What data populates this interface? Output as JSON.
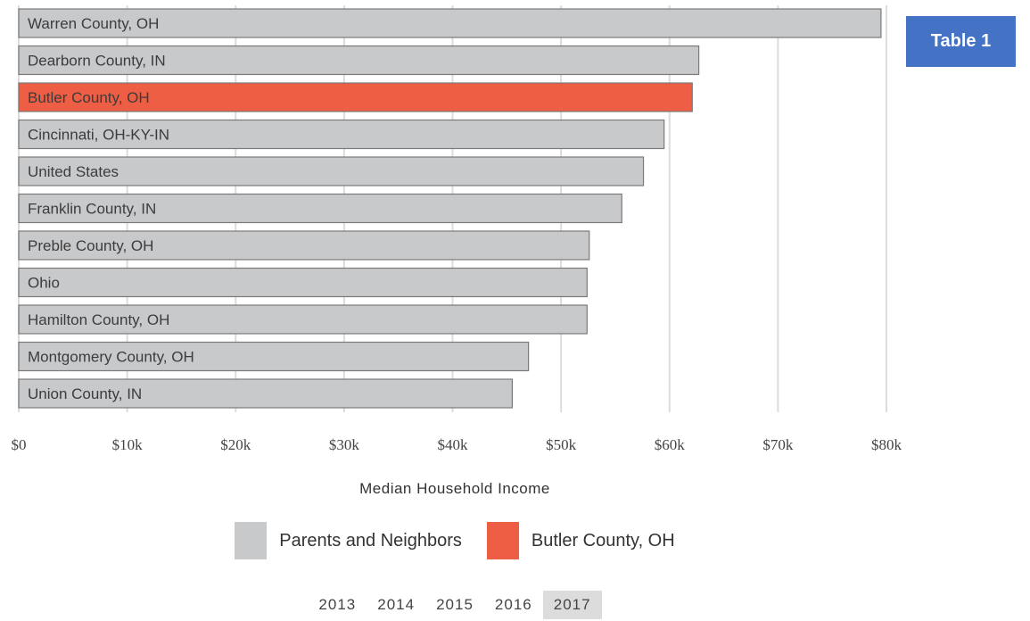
{
  "badge": {
    "label": "Table 1",
    "color": "#4472c4"
  },
  "chart_data": {
    "type": "bar",
    "orientation": "horizontal",
    "categories": [
      "Warren County, OH",
      "Dearborn County, IN",
      "Butler County, OH",
      "Cincinnati, OH-KY-IN",
      "United States",
      "Franklin County, IN",
      "Preble County, OH",
      "Ohio",
      "Hamilton County, OH",
      "Montgomery County, OH",
      "Union County, IN"
    ],
    "values": [
      79500,
      62700,
      62100,
      59500,
      57600,
      55600,
      52600,
      52400,
      52400,
      47000,
      45500
    ],
    "highlight": [
      "no",
      "no",
      "yes",
      "no",
      "no",
      "no",
      "no",
      "no",
      "no",
      "no",
      "no"
    ],
    "xlabel": "Median Household Income",
    "xlim": [
      0,
      80000
    ],
    "ticks": [
      0,
      10000,
      20000,
      30000,
      40000,
      50000,
      60000,
      70000,
      80000
    ],
    "tick_labels": [
      "$0",
      "$10k",
      "$20k",
      "$30k",
      "$40k",
      "$50k",
      "$60k",
      "$70k",
      "$80k"
    ],
    "grid": true,
    "colors": {
      "default": "#c8c9cb",
      "highlight": "#ee5e44",
      "stroke": "#7a7a7a",
      "grid": "#dcdcdc"
    },
    "legend": [
      {
        "name": "Parents and Neighbors",
        "color": "#c8c9cb"
      },
      {
        "name": "Butler County, OH",
        "color": "#ee5e44"
      }
    ],
    "legend_placement": "bottom"
  },
  "years": {
    "items": [
      "2013",
      "2014",
      "2015",
      "2016",
      "2017"
    ],
    "selected": "2017"
  }
}
